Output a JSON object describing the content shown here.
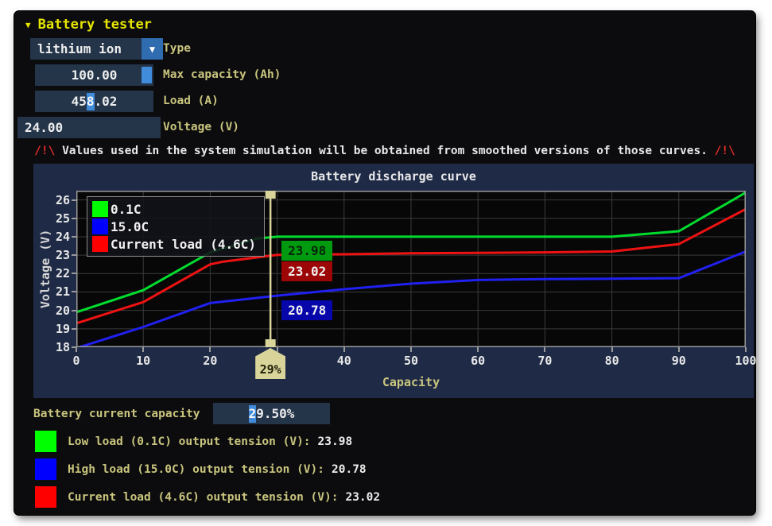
{
  "header": {
    "collapse_icon": "▼",
    "title": "Battery tester"
  },
  "form": {
    "type": {
      "value": "lithium ion",
      "label": "Type",
      "dropdown_icon": "▼"
    },
    "max_capacity": {
      "value": "100.00",
      "label": "Max capacity (Ah)"
    },
    "load": {
      "value_pre": "45",
      "value_cursor": "8",
      "value_post": ".02",
      "label": "Load (A)"
    },
    "voltage": {
      "value": "24.00",
      "label": "Voltage (V)"
    }
  },
  "warning": {
    "icon_left": "/!\\",
    "text": "Values used in the system simulation will be obtained from smoothed versions of those curves.",
    "icon_right": "/!\\"
  },
  "chart_data": {
    "type": "line",
    "title": "Battery discharge curve",
    "xlabel": "Capacity",
    "ylabel": "Voltage (V)",
    "xlim": [
      0,
      100
    ],
    "ylim": [
      18,
      26.5
    ],
    "x_ticks": [
      0,
      10,
      20,
      30,
      40,
      50,
      60,
      70,
      80,
      90,
      100
    ],
    "y_ticks": [
      18,
      19,
      20,
      21,
      22,
      23,
      24,
      25,
      26
    ],
    "grid": true,
    "grid_color": "#3b3b3b",
    "plot_bg": "#070707",
    "legend_position": "top-left",
    "series": [
      {
        "name": "0.1C",
        "color": "#00dd2e",
        "swatch": "#00ff00",
        "x": [
          0,
          10,
          20,
          27,
          30,
          40,
          50,
          60,
          70,
          80,
          90,
          100
        ],
        "y": [
          19.9,
          21.1,
          23.15,
          23.9,
          24.0,
          24.0,
          24.0,
          24.0,
          24.0,
          24.0,
          24.3,
          26.4
        ]
      },
      {
        "name": "15.0C",
        "color": "#2020f0",
        "swatch": "#0000ff",
        "x": [
          0,
          10,
          20,
          30,
          40,
          50,
          60,
          70,
          80,
          90,
          100
        ],
        "y": [
          17.95,
          19.1,
          20.4,
          20.8,
          21.15,
          21.45,
          21.65,
          21.7,
          21.72,
          21.75,
          23.2
        ]
      },
      {
        "name": "Current load (4.6C)",
        "color": "#ee1212",
        "swatch": "#ff0000",
        "x": [
          0,
          10,
          20,
          22,
          30,
          40,
          50,
          60,
          70,
          80,
          90,
          100
        ],
        "y": [
          19.3,
          20.45,
          22.5,
          22.65,
          23.02,
          23.05,
          23.1,
          23.12,
          23.15,
          23.2,
          23.6,
          25.5
        ]
      }
    ],
    "cursor": {
      "x": 29,
      "handle_label": "29%",
      "line_color": "#d8d49a",
      "markers": [
        {
          "series": "0.1C",
          "value": 23.98,
          "text": "23.98",
          "bg": "#009a10",
          "fg": "#072607"
        },
        {
          "series": "Current load (4.6C)",
          "value": 23.02,
          "text": "23.02",
          "bg": "#9c0606",
          "fg": "#f0f0f0"
        },
        {
          "series": "15.0C",
          "value": 20.78,
          "text": "20.78",
          "bg": "#0606aa",
          "fg": "#f0f0f0"
        }
      ]
    }
  },
  "capacity_field": {
    "label": "Battery current capacity",
    "value_pre": "",
    "value_cursor": "2",
    "value_post": "9.50%"
  },
  "readouts": [
    {
      "swatch": "#00ff00",
      "label": "Low load (0.1C) output tension (V):",
      "value": "23.98"
    },
    {
      "swatch": "#0000ff",
      "label": "High load (15.0C) output tension (V):",
      "value": "20.78"
    },
    {
      "swatch": "#ff0000",
      "label": "Current load (4.6C) output tension (V):",
      "value": "23.02"
    }
  ],
  "colors": {
    "accent_yellow": "#e6e600",
    "label_khaki": "#c9c57e",
    "field_bg": "#243449",
    "cursor_blue": "#418cda",
    "panel_bg": "#1f2b46",
    "warning_red": "#e02a2a",
    "slider_khaki": "#d8d49a"
  }
}
